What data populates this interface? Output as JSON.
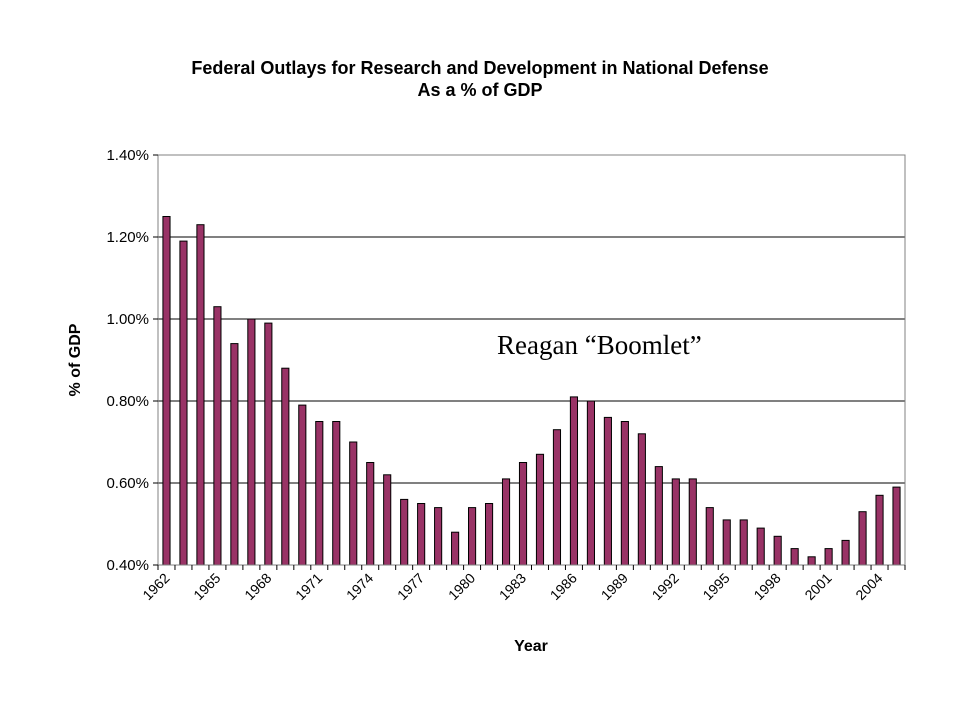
{
  "chart_data": {
    "type": "bar",
    "title": "Federal Outlays for Research and Development in National Defense",
    "subtitle": "As a % of GDP",
    "xlabel": "Year",
    "ylabel": "% of GDP",
    "ylim": [
      0.4,
      1.4
    ],
    "yticks": [
      "0.40%",
      "0.60%",
      "0.80%",
      "1.00%",
      "1.20%",
      "1.40%"
    ],
    "ytick_values": [
      0.4,
      0.6,
      0.8,
      1.0,
      1.2,
      1.4
    ],
    "xtick_labels": [
      "1962",
      "1965",
      "1968",
      "1971",
      "1974",
      "1977",
      "1980",
      "1983",
      "1986",
      "1989",
      "1992",
      "1995",
      "1998",
      "2001",
      "2004"
    ],
    "categories": [
      "1962",
      "1963",
      "1964",
      "1965",
      "1966",
      "1967",
      "1968",
      "1969",
      "1970",
      "1971",
      "1972",
      "1973",
      "1974",
      "1975",
      "1976",
      "1977",
      "1978",
      "1979",
      "1980",
      "1981",
      "1982",
      "1983",
      "1984",
      "1985",
      "1986",
      "1987",
      "1988",
      "1989",
      "1990",
      "1991",
      "1992",
      "1993",
      "1994",
      "1995",
      "1996",
      "1997",
      "1998",
      "1999",
      "2000",
      "2001",
      "2002",
      "2003",
      "2004",
      "2005"
    ],
    "values": [
      1.25,
      1.19,
      1.23,
      1.03,
      0.94,
      1.0,
      0.99,
      0.88,
      0.79,
      0.75,
      0.75,
      0.7,
      0.65,
      0.62,
      0.56,
      0.55,
      0.54,
      0.48,
      0.54,
      0.55,
      0.61,
      0.65,
      0.67,
      0.73,
      0.81,
      0.8,
      0.76,
      0.75,
      0.72,
      0.64,
      0.61,
      0.61,
      0.54,
      0.51,
      0.51,
      0.49,
      0.47,
      0.44,
      0.42,
      0.44,
      0.46,
      0.53,
      0.57,
      0.59
    ],
    "bar_color": "#993366",
    "grid": true,
    "annotation": "Reagan “Boomlet”"
  }
}
